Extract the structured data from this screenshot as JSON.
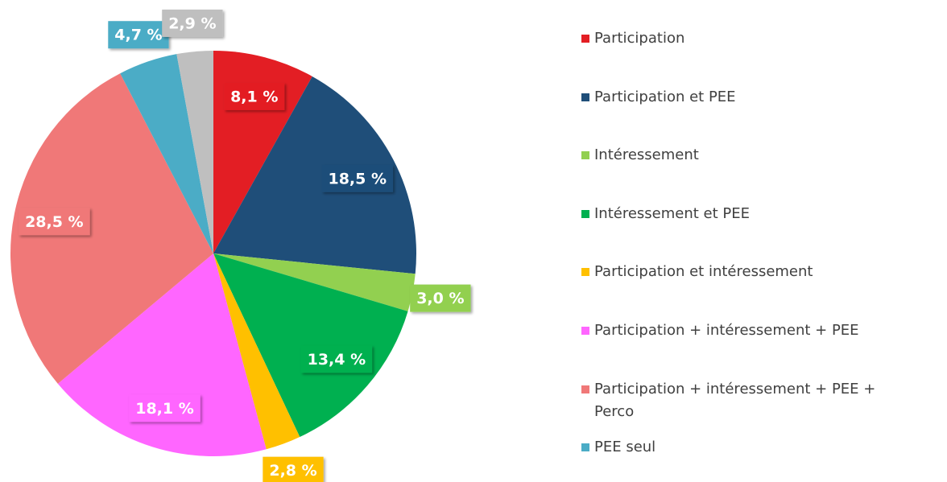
{
  "chart_data": {
    "type": "pie",
    "categories": [
      "Participation",
      "Participation et PEE",
      "Intéressement",
      "Intéressement et PEE",
      "Participation et intéressement",
      "Participation + intéressement + PEE",
      "Participation + intéressement + PEE + Perco",
      "PEE seul",
      null
    ],
    "values": [
      8.1,
      18.5,
      3.0,
      13.4,
      2.8,
      18.1,
      28.5,
      4.7,
      2.9
    ],
    "value_labels": [
      "8,1 %",
      "18,5 %",
      "3,0 %",
      "13,4 %",
      "2,8 %",
      "18,1 %",
      "28,5 %",
      "4,7 %",
      "2,9 %"
    ],
    "colors": [
      "#e31e24",
      "#1f4e79",
      "#92d050",
      "#00b050",
      "#ffc000",
      "#ff66ff",
      "#f07878",
      "#4bacc6",
      "#bfbfbf"
    ]
  }
}
